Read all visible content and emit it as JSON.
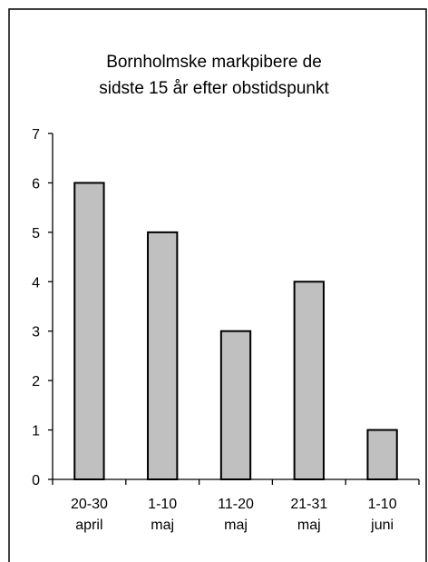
{
  "chart_data": {
    "type": "bar",
    "title": [
      "Bornholmske markpibere de",
      "sidste 15 år efter obstidspunkt"
    ],
    "xlabel": "",
    "ylabel": "",
    "categories": [
      [
        "20-30",
        "april"
      ],
      [
        "1-10",
        "maj"
      ],
      [
        "11-20",
        "maj"
      ],
      [
        "21-31",
        "maj"
      ],
      [
        "1-10",
        "juni"
      ]
    ],
    "values": [
      6,
      5,
      3,
      4,
      1
    ],
    "ylim": [
      0,
      7
    ],
    "yticks": [
      "0",
      "1",
      "2",
      "3",
      "4",
      "5",
      "6",
      "7"
    ],
    "grid": false,
    "legend": "none",
    "colors": {
      "bar_fill": "#c0c0c0",
      "bar_stroke": "#000000",
      "axis": "#000000",
      "frame": "#000000",
      "background": "#ffffff"
    }
  }
}
